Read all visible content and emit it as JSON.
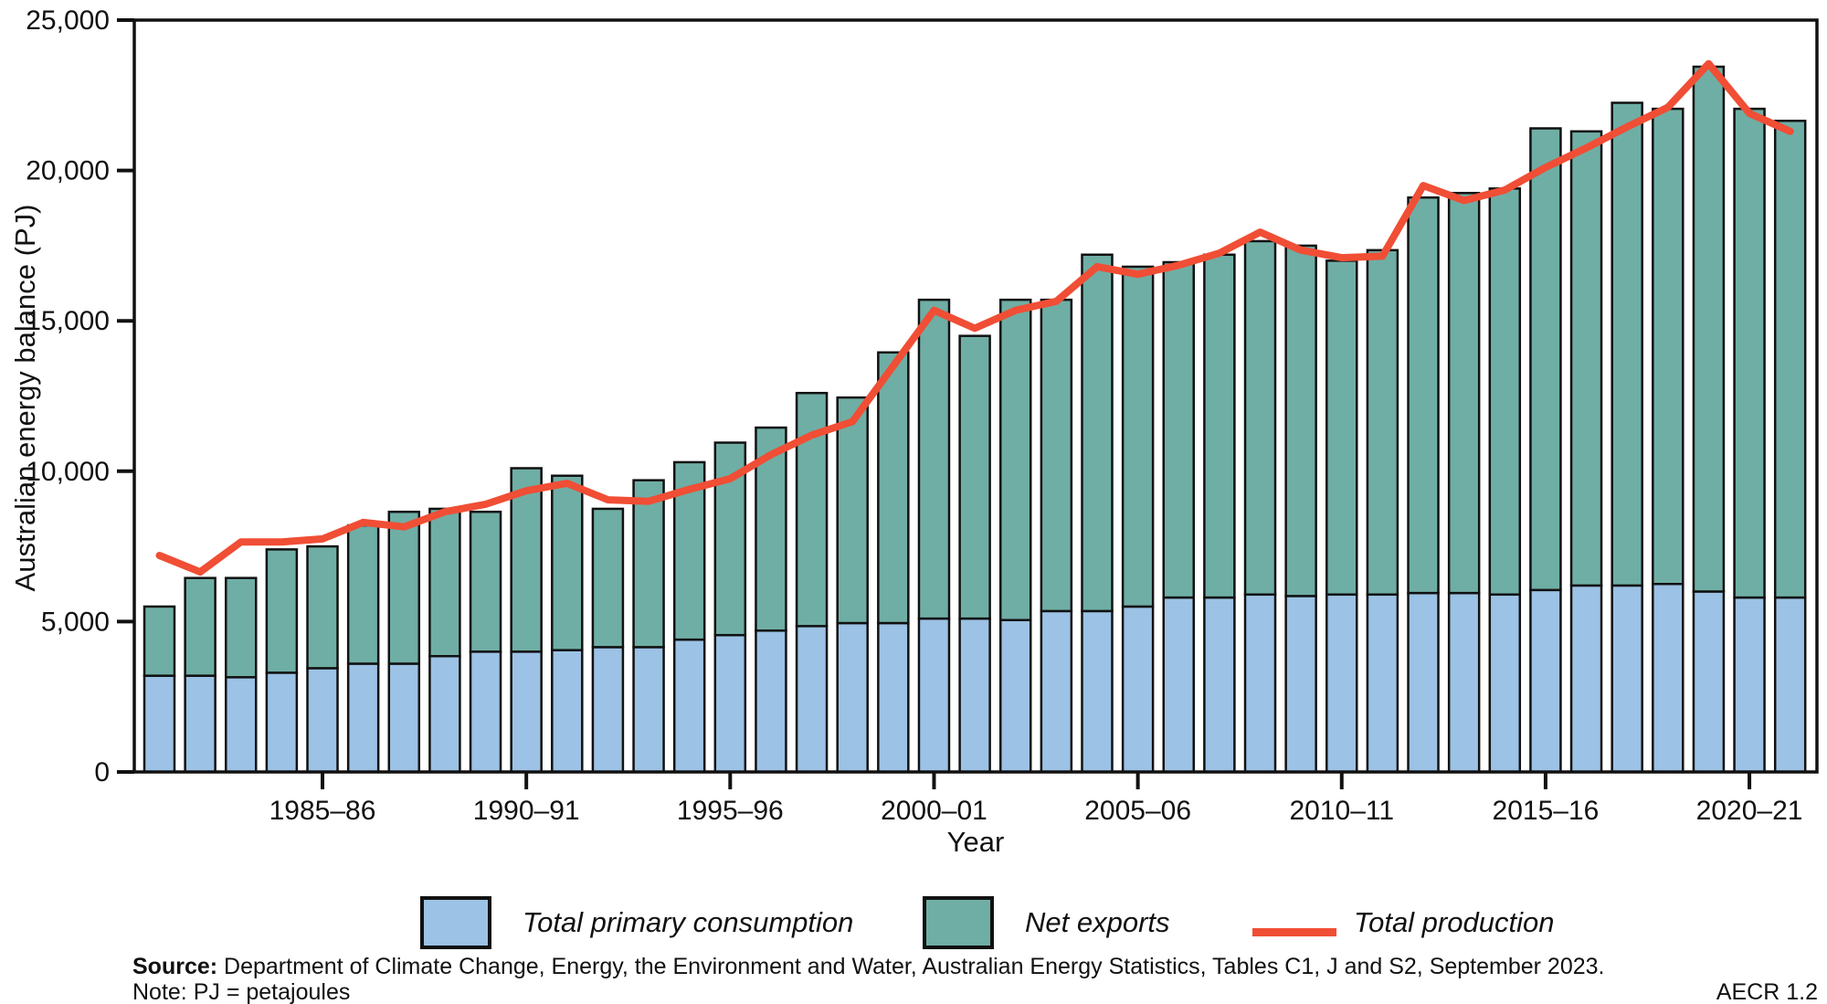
{
  "figure": {
    "y_axis_title": "Australian energy balance (PJ)",
    "x_axis_title": "Year",
    "y_tick_labels": [
      "0",
      "5,000",
      "10,000",
      "15,000",
      "20,000",
      "25,000"
    ]
  },
  "legend": {
    "items": [
      {
        "label": "Total primary consumption",
        "swatch": "box",
        "color": "#9CC2E5"
      },
      {
        "label": "Net exports",
        "swatch": "box",
        "color": "#6FAEA5"
      },
      {
        "label": "Total production",
        "swatch": "line",
        "color": "#F04E35"
      }
    ]
  },
  "footer": {
    "source_label": "Source:",
    "source_text": " Department of Climate Change, Energy, the Environment and Water, Australian Energy Statistics, Tables C1, J and S2, September 2023.",
    "note_text": "Note: PJ = petajoules",
    "ref_text": "AECR 1.2"
  },
  "chart_data": {
    "type": "bar",
    "stacked": true,
    "title": "",
    "xlabel": "Year",
    "ylabel": "Australian energy balance (PJ)",
    "ylim": [
      0,
      25000
    ],
    "yticks": [
      0,
      5000,
      10000,
      15000,
      20000,
      25000
    ],
    "grid": false,
    "legend_position": "bottom",
    "categories": [
      "1981–82",
      "1982–83",
      "1983–84",
      "1984–85",
      "1985–86",
      "1986–87",
      "1987–88",
      "1988–89",
      "1989–90",
      "1990–91",
      "1991–92",
      "1992–93",
      "1993–94",
      "1994–95",
      "1995–96",
      "1996–97",
      "1997–98",
      "1998–99",
      "1999–00",
      "2000–01",
      "2001–02",
      "2002–03",
      "2003–04",
      "2004–05",
      "2005–06",
      "2006–07",
      "2007–08",
      "2008–09",
      "2009–10",
      "2010–11",
      "2011–12",
      "2012–13",
      "2013–14",
      "2014–15",
      "2015–16",
      "2016–17",
      "2017–18",
      "2018–19",
      "2019–20",
      "2020–21",
      "2021–22"
    ],
    "xtick_categories": [
      "1985–86",
      "1990–91",
      "1995–96",
      "2000–01",
      "2005–06",
      "2010–11",
      "2015–16",
      "2020–21"
    ],
    "series": [
      {
        "name": "Total primary consumption",
        "kind": "bar",
        "color": "#9CC2E5",
        "values": [
          3200,
          3200,
          3150,
          3300,
          3450,
          3600,
          3600,
          3850,
          4000,
          4000,
          4050,
          4150,
          4150,
          4400,
          4550,
          4700,
          4850,
          4950,
          4950,
          5100,
          5100,
          5050,
          5350,
          5350,
          5500,
          5800,
          5800,
          5900,
          5850,
          5900,
          5900,
          5950,
          5950,
          5900,
          6050,
          6200,
          6200,
          6250,
          6000,
          5800,
          5800
        ]
      },
      {
        "name": "Net exports",
        "kind": "bar",
        "color": "#6FAEA5",
        "values": [
          2300,
          3250,
          3300,
          4100,
          4050,
          4600,
          5050,
          4900,
          4650,
          6100,
          5800,
          4600,
          5550,
          5900,
          6400,
          6750,
          7750,
          7500,
          9000,
          10600,
          9400,
          10650,
          10350,
          11850,
          11300,
          11150,
          11400,
          11750,
          11650,
          11100,
          11450,
          13150,
          13300,
          13500,
          15350,
          15100,
          16050,
          15800,
          17450,
          16250,
          15850
        ]
      },
      {
        "name": "Total production",
        "kind": "line",
        "color": "#F04E35",
        "values": [
          7200,
          6650,
          7650,
          7650,
          7750,
          8300,
          8150,
          8650,
          8900,
          9350,
          9600,
          9050,
          9000,
          9400,
          9750,
          10550,
          11200,
          11650,
          13500,
          15350,
          14750,
          15350,
          15650,
          16800,
          16550,
          16850,
          17250,
          17950,
          17350,
          17100,
          17150,
          19500,
          19000,
          19350,
          20100,
          20750,
          21450,
          22100,
          23550,
          21900,
          21300
        ]
      }
    ]
  }
}
